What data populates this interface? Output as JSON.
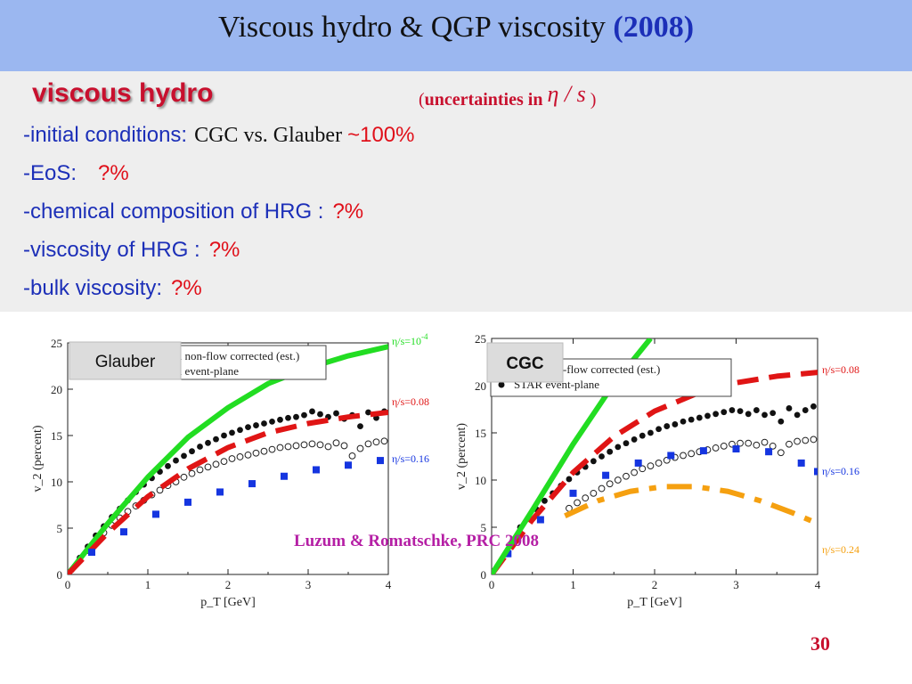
{
  "slide": {
    "title_main": "Viscous hydro  &  QGP viscosity  ",
    "title_year": "(2008)",
    "heading": "viscous hydro",
    "uncert_open": "(",
    "uncert_text": "uncertainties in ",
    "uncert_symbol": "η / s",
    "uncert_close": " )",
    "bullets": [
      {
        "label": "-initial conditions:",
        "extra": "CGC vs. Glauber",
        "value": "~100%"
      },
      {
        "label": "-EoS:",
        "extra": "",
        "value": "?%"
      },
      {
        "label": "-chemical composition of HRG :",
        "extra": "",
        "value": "?%"
      },
      {
        "label": "-viscosity of HRG :",
        "extra": "",
        "value": "?%"
      },
      {
        "label": "-bulk viscosity:",
        "extra": "",
        "value": "?%"
      }
    ],
    "reference": "Luzum & Romatschke, PRC 2008",
    "page_number": "30"
  },
  "chart_data": [
    {
      "type": "line",
      "tag": "Glauber",
      "xlabel": "p_T [GeV]",
      "ylabel": "v_2 (percent)",
      "xlim": [
        0,
        4
      ],
      "ylim": [
        0,
        25
      ],
      "xticks": [
        "0",
        "1",
        "2",
        "3",
        "4"
      ],
      "yticks": [
        "0",
        "5",
        "10",
        "15",
        "20",
        "25"
      ],
      "legend": [
        "STAR non-flow corrected (est.)",
        "STAR event-plane"
      ],
      "curves": [
        {
          "name": "η/s=10^-4",
          "color": "#22dd22",
          "style": "solid",
          "x": [
            0,
            0.5,
            1,
            1.5,
            2,
            2.5,
            3,
            3.5,
            4
          ],
          "y": [
            0,
            5.5,
            10.5,
            14.8,
            18,
            20.6,
            22.3,
            23.6,
            24.6
          ]
        },
        {
          "name": "η/s=0.08",
          "color": "#e01515",
          "style": "dash",
          "x": [
            0,
            0.5,
            1,
            1.5,
            2,
            2.5,
            3,
            3.5,
            4
          ],
          "y": [
            0,
            4.5,
            8.4,
            11.4,
            13.7,
            15.3,
            16.3,
            17.0,
            17.5
          ]
        },
        {
          "name": "η/s=0.16",
          "color": "#1535e0",
          "style": "square-dots",
          "x": [
            0.3,
            0.7,
            1.1,
            1.5,
            1.9,
            2.3,
            2.7,
            3.1,
            3.5,
            3.9
          ],
          "y": [
            2.4,
            4.6,
            6.5,
            7.8,
            8.9,
            9.8,
            10.6,
            11.3,
            11.8,
            12.3
          ]
        }
      ],
      "data_points": [
        {
          "name": "STAR event-plane",
          "marker": "filled-circle",
          "x": [
            0.05,
            0.15,
            0.25,
            0.35,
            0.45,
            0.55,
            0.65,
            0.75,
            0.85,
            0.95,
            1.05,
            1.15,
            1.25,
            1.35,
            1.45,
            1.55,
            1.65,
            1.75,
            1.85,
            1.95,
            2.05,
            2.15,
            2.25,
            2.35,
            2.45,
            2.55,
            2.65,
            2.75,
            2.85,
            2.95,
            3.05,
            3.15,
            3.25,
            3.35,
            3.45,
            3.55,
            3.65,
            3.75,
            3.85,
            3.95
          ],
          "y": [
            0.5,
            1.8,
            3.0,
            4.2,
            5.2,
            6.2,
            7.1,
            8.0,
            8.9,
            9.7,
            10.4,
            11.1,
            11.7,
            12.3,
            12.8,
            13.3,
            13.8,
            14.2,
            14.6,
            15.0,
            15.3,
            15.6,
            15.9,
            16.1,
            16.3,
            16.5,
            16.7,
            16.9,
            17.0,
            17.2,
            17.6,
            17.3,
            17.0,
            17.4,
            16.8,
            17.2,
            16.0,
            17.5,
            16.9,
            17.6
          ]
        },
        {
          "name": "STAR non-flow corrected (est.)",
          "marker": "open-circle",
          "x": [
            0.15,
            0.25,
            0.35,
            0.45,
            0.55,
            0.65,
            0.75,
            0.85,
            0.95,
            1.05,
            1.15,
            1.25,
            1.35,
            1.45,
            1.55,
            1.65,
            1.75,
            1.85,
            1.95,
            2.05,
            2.15,
            2.25,
            2.35,
            2.45,
            2.55,
            2.65,
            2.75,
            2.85,
            2.95,
            3.05,
            3.15,
            3.25,
            3.35,
            3.45,
            3.55,
            3.65,
            3.75,
            3.85,
            3.95
          ],
          "y": [
            1.5,
            2.6,
            3.6,
            4.5,
            5.3,
            6.1,
            6.8,
            7.4,
            8.0,
            8.6,
            9.1,
            9.6,
            10.0,
            10.5,
            10.9,
            11.3,
            11.6,
            11.9,
            12.2,
            12.5,
            12.7,
            12.9,
            13.1,
            13.3,
            13.5,
            13.7,
            13.8,
            13.9,
            14.0,
            14.1,
            14.0,
            13.8,
            14.2,
            13.9,
            12.8,
            13.6,
            14.1,
            14.3,
            14.4
          ]
        }
      ]
    },
    {
      "type": "line",
      "tag": "CGC",
      "xlabel": "p_T [GeV]",
      "ylabel": "v_2 (percent)",
      "xlim": [
        0,
        4
      ],
      "ylim": [
        0,
        25
      ],
      "xticks": [
        "0",
        "1",
        "2",
        "3",
        "4"
      ],
      "yticks": [
        "0",
        "5",
        "10",
        "15",
        "20",
        "25"
      ],
      "legend": [
        "STAR non-flow corrected (est.)",
        "STAR event-plane"
      ],
      "curves": [
        {
          "name": "η/s=0.08",
          "color": "#e01515",
          "style": "dash",
          "x": [
            0,
            0.5,
            1,
            1.5,
            2,
            2.5,
            3,
            3.5,
            4
          ],
          "y": [
            0,
            5.8,
            10.8,
            14.6,
            17.3,
            19.1,
            20.3,
            21.0,
            21.4
          ]
        },
        {
          "name": "η/s=0.16",
          "color": "#1535e0",
          "style": "square-dots",
          "x": [
            0.2,
            0.6,
            1.0,
            1.4,
            1.8,
            2.2,
            2.6,
            3.0,
            3.4,
            3.8,
            4.0
          ],
          "y": [
            2.2,
            5.8,
            8.6,
            10.5,
            11.8,
            12.6,
            13.1,
            13.3,
            13.0,
            11.8,
            10.9
          ]
        },
        {
          "name": "η/s=0.24",
          "color": "#f5a010",
          "style": "dash-dot",
          "x": [
            0.9,
            1.3,
            1.7,
            2.1,
            2.5,
            2.9,
            3.3,
            3.7,
            4.0
          ],
          "y": [
            6.2,
            7.8,
            8.8,
            9.3,
            9.3,
            8.8,
            7.8,
            6.5,
            5.4
          ]
        },
        {
          "name": "",
          "color": "#22dd22",
          "style": "solid",
          "x": [
            0,
            0.5,
            1,
            1.5,
            1.95
          ],
          "y": [
            0,
            6.8,
            13.8,
            20.2,
            25
          ]
        }
      ],
      "data_points": [
        {
          "name": "STAR event-plane",
          "marker": "filled-circle",
          "x": [
            0.35,
            0.45,
            0.55,
            0.65,
            0.75,
            0.85,
            0.95,
            1.05,
            1.15,
            1.25,
            1.35,
            1.45,
            1.55,
            1.65,
            1.75,
            1.85,
            1.95,
            2.05,
            2.15,
            2.25,
            2.35,
            2.45,
            2.55,
            2.65,
            2.75,
            2.85,
            2.95,
            3.05,
            3.15,
            3.25,
            3.35,
            3.45,
            3.55,
            3.65,
            3.75,
            3.85,
            3.95
          ],
          "y": [
            5.0,
            6.0,
            6.9,
            7.8,
            8.6,
            9.4,
            10.1,
            10.8,
            11.4,
            12.0,
            12.5,
            13.0,
            13.5,
            13.9,
            14.3,
            14.7,
            15.0,
            15.4,
            15.7,
            15.9,
            16.2,
            16.4,
            16.6,
            16.8,
            17.0,
            17.2,
            17.4,
            17.3,
            17.0,
            17.4,
            16.9,
            17.1,
            16.2,
            17.6,
            16.9,
            17.4,
            17.8
          ]
        },
        {
          "name": "STAR non-flow corrected (est.)",
          "marker": "open-circle",
          "x": [
            0.95,
            1.05,
            1.15,
            1.25,
            1.35,
            1.45,
            1.55,
            1.65,
            1.75,
            1.85,
            1.95,
            2.05,
            2.15,
            2.25,
            2.35,
            2.45,
            2.55,
            2.65,
            2.75,
            2.85,
            2.95,
            3.05,
            3.15,
            3.25,
            3.35,
            3.45,
            3.55,
            3.65,
            3.75,
            3.85,
            3.95
          ],
          "y": [
            7.0,
            7.6,
            8.1,
            8.6,
            9.1,
            9.6,
            10.0,
            10.4,
            10.8,
            11.2,
            11.5,
            11.8,
            12.1,
            12.4,
            12.6,
            12.8,
            13.0,
            13.2,
            13.4,
            13.6,
            13.8,
            13.9,
            13.9,
            13.7,
            14.0,
            13.6,
            12.9,
            13.8,
            14.1,
            14.2,
            14.3
          ]
        }
      ]
    }
  ]
}
